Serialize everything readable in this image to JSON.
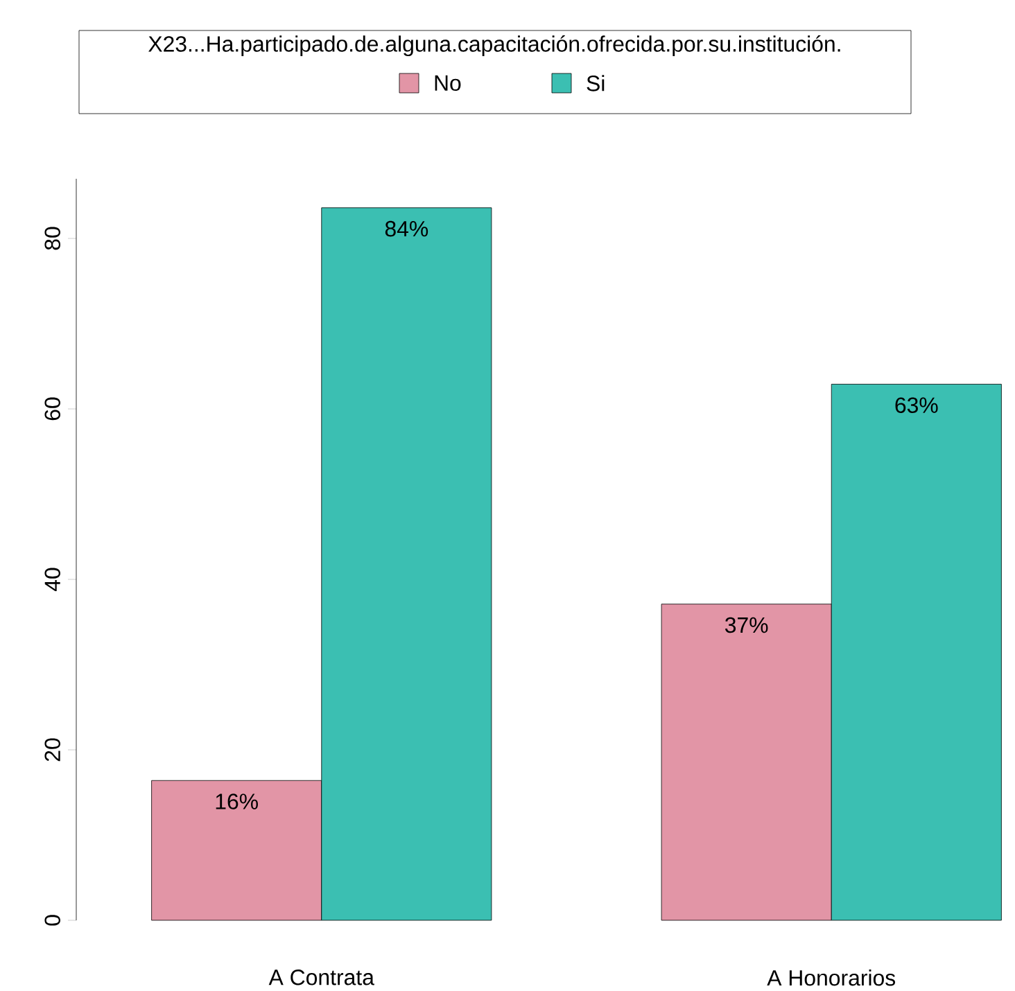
{
  "chart_data": {
    "type": "bar",
    "legend_title": "X23...Ha.participado.de.alguna.capacitación.ofrecida.por.su.institución.",
    "legend": "top",
    "categories": [
      "A Contrata",
      "A Honorarios"
    ],
    "series": [
      {
        "name": "No",
        "color": "#e295a6",
        "values": [
          16.4,
          37.1
        ],
        "value_labels": [
          "16%",
          "37%"
        ]
      },
      {
        "name": "Si",
        "color": "#3bbfb2",
        "values": [
          83.6,
          62.9
        ],
        "value_labels": [
          "84%",
          "63%"
        ]
      }
    ],
    "ylim": [
      0,
      87
    ],
    "yticks": [
      0,
      20,
      40,
      60,
      80
    ]
  }
}
